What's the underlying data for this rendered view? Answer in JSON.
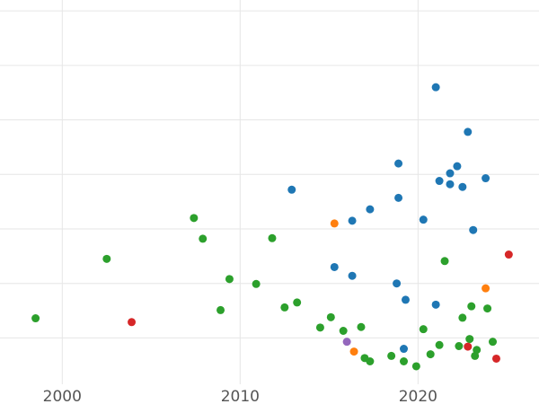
{
  "chart_data": {
    "type": "scatter",
    "title": "",
    "xlabel": "",
    "ylabel": "",
    "xlim": [
      1996.5,
      2026.8
    ],
    "ylim": [
      0.15,
      7.2
    ],
    "x_ticks": [
      2000,
      2010,
      2020
    ],
    "x_tick_labels": [
      "2000",
      "2010",
      "2020"
    ],
    "y_gridlines": [
      1,
      2,
      3,
      4,
      5,
      6,
      7
    ],
    "y_tick_labels_visible": false,
    "grid": true,
    "legend": "none",
    "colors": {
      "blue": "#1f77b4",
      "orange": "#ff7f0e",
      "green": "#2ca02c",
      "red": "#d62728",
      "purple": "#9467bd"
    },
    "series": [
      {
        "color": "blue",
        "points": [
          [
            2021.0,
            5.6
          ],
          [
            2022.8,
            4.78
          ],
          [
            2018.9,
            4.2
          ],
          [
            2022.2,
            4.15
          ],
          [
            2021.8,
            4.02
          ],
          [
            2021.2,
            3.88
          ],
          [
            2023.8,
            3.93
          ],
          [
            2021.8,
            3.82
          ],
          [
            2022.5,
            3.77
          ],
          [
            2012.9,
            3.72
          ],
          [
            2018.9,
            3.57
          ],
          [
            2017.3,
            3.36
          ],
          [
            2016.3,
            3.15
          ],
          [
            2020.3,
            3.17
          ],
          [
            2023.1,
            2.98
          ],
          [
            2015.3,
            2.3
          ],
          [
            2016.3,
            2.14
          ],
          [
            2018.8,
            2.0
          ],
          [
            2019.3,
            1.7
          ],
          [
            2021.0,
            1.61
          ],
          [
            2019.2,
            0.8
          ]
        ]
      },
      {
        "color": "orange",
        "points": [
          [
            2015.3,
            3.1
          ],
          [
            2023.8,
            1.91
          ],
          [
            2016.4,
            0.75
          ]
        ]
      },
      {
        "color": "green",
        "points": [
          [
            2007.4,
            3.2
          ],
          [
            2007.9,
            2.82
          ],
          [
            2011.8,
            2.83
          ],
          [
            2002.5,
            2.45
          ],
          [
            2009.4,
            2.08
          ],
          [
            2010.9,
            1.99
          ],
          [
            2021.5,
            2.41
          ],
          [
            2013.2,
            1.65
          ],
          [
            2012.5,
            1.56
          ],
          [
            2008.9,
            1.51
          ],
          [
            2023.0,
            1.58
          ],
          [
            2023.9,
            1.54
          ],
          [
            1998.5,
            1.36
          ],
          [
            2015.1,
            1.38
          ],
          [
            2022.5,
            1.37
          ],
          [
            2014.5,
            1.19
          ],
          [
            2016.8,
            1.2
          ],
          [
            2015.8,
            1.13
          ],
          [
            2020.3,
            1.16
          ],
          [
            2022.9,
            0.98
          ],
          [
            2021.2,
            0.87
          ],
          [
            2022.3,
            0.85
          ],
          [
            2023.3,
            0.78
          ],
          [
            2024.2,
            0.93
          ],
          [
            2020.7,
            0.7
          ],
          [
            2017.0,
            0.63
          ],
          [
            2017.3,
            0.57
          ],
          [
            2018.5,
            0.67
          ],
          [
            2019.2,
            0.57
          ],
          [
            2023.2,
            0.67
          ],
          [
            2019.9,
            0.48
          ]
        ]
      },
      {
        "color": "red",
        "points": [
          [
            2003.9,
            1.29
          ],
          [
            2025.1,
            2.53
          ],
          [
            2022.8,
            0.84
          ],
          [
            2024.4,
            0.62
          ]
        ]
      },
      {
        "color": "purple",
        "points": [
          [
            2016.0,
            0.93
          ]
        ]
      }
    ]
  }
}
